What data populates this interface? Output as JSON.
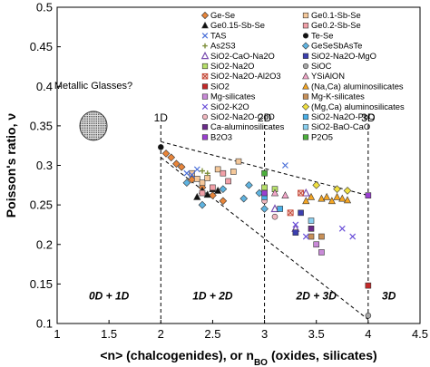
{
  "chart_data": {
    "type": "scatter",
    "xlabel": "<n> (chalcogenides), or n",
    "xlabel_sub": "BO",
    "xlabel_tail": "(oxides, silicates)",
    "ylabel": "Poisson's ratio, ν",
    "xlim": [
      1,
      4.5
    ],
    "ylim": [
      0.1,
      0.5
    ],
    "x_ticks": [
      1,
      1.5,
      2,
      2.5,
      3,
      3.5,
      4,
      4.5
    ],
    "y_ticks": [
      0.1,
      0.15,
      0.2,
      0.25,
      0.3,
      0.35,
      0.4,
      0.45,
      0.5
    ],
    "x_tick_labels": [
      "1",
      "1.5",
      "2",
      "2.5",
      "3",
      "3.5",
      "4",
      "4.5"
    ],
    "y_tick_labels": [
      "0.1",
      "0.15",
      "0.2",
      "0.25",
      "0.3",
      "0.35",
      "0.4",
      "0.45",
      "0.5"
    ],
    "dimension_lines": [
      {
        "x": 2,
        "label": "1D"
      },
      {
        "x": 3,
        "label": "2D"
      },
      {
        "x": 4,
        "label": "3D"
      }
    ],
    "region_labels": [
      {
        "text": "0D + 1D",
        "x": 1.5,
        "y": 0.135
      },
      {
        "text": "1D + 2D",
        "x": 2.5,
        "y": 0.135
      },
      {
        "text": "2D + 3D",
        "x": 3.5,
        "y": 0.135
      },
      {
        "text": "3D",
        "x": 4.2,
        "y": 0.135
      }
    ],
    "annotation": {
      "text": "Metallic Glasses?",
      "x": 1.35,
      "y": 0.35
    },
    "bounds": [
      {
        "from": [
          2,
          0.33
        ],
        "to": [
          4,
          0.262
        ]
      },
      {
        "from": [
          2,
          0.31
        ],
        "to": [
          4,
          0.105
        ]
      }
    ],
    "legend": [
      {
        "name": "Ge-Se",
        "marker": "diamond",
        "color": "#e8853a"
      },
      {
        "name": "Ge0.1-Sb-Se",
        "marker": "square",
        "color": "#f5c89a"
      },
      {
        "name": "Ge0.15-Sb-Se",
        "marker": "triangle",
        "color": "#111111"
      },
      {
        "name": "Ge0.2-Sb-Se",
        "marker": "square",
        "color": "#f2a0a8"
      },
      {
        "name": "TAS",
        "marker": "x",
        "color": "#4a6fd8"
      },
      {
        "name": "Te-Se",
        "marker": "circle",
        "color": "#111111"
      },
      {
        "name": "As2S3",
        "marker": "plus",
        "color": "#7e8f3a"
      },
      {
        "name": "GeSeSbAsTe",
        "marker": "diamond",
        "color": "#5fb3e0"
      },
      {
        "name": "SiO2-CaO-Na2O",
        "marker": "triangle-open",
        "color": "#7a4fb0"
      },
      {
        "name": "SiO2-Na2O-MgO",
        "marker": "square",
        "color": "#3c3fb0"
      },
      {
        "name": "SiO2-Na2O",
        "marker": "square",
        "color": "#b7e06a"
      },
      {
        "name": "SiOC",
        "marker": "circle",
        "color": "#a8a8a8"
      },
      {
        "name": "SiO2-Na2O-Al2O3",
        "marker": "xbox",
        "color": "#c04030"
      },
      {
        "name": "YSiAlON",
        "marker": "triangle",
        "color": "#f3a6c9"
      },
      {
        "name": "SiO2",
        "marker": "square",
        "color": "#c42828"
      },
      {
        "name": "(Na,Ca) aluminosilicates",
        "marker": "triangle",
        "color": "#f5a623"
      },
      {
        "name": "Mg-silicates",
        "marker": "square",
        "color": "#c98ad8"
      },
      {
        "name": "Mg-K-silicates",
        "marker": "square",
        "color": "#c89058"
      },
      {
        "name": "SiO2-K2O",
        "marker": "x",
        "color": "#6a4fd8"
      },
      {
        "name": "(Mg,Ca) aluminosilicates",
        "marker": "diamond",
        "color": "#f0e040"
      },
      {
        "name": "SiO2-Na2O-CdO",
        "marker": "circle",
        "color": "#f2b8c0"
      },
      {
        "name": "SiO2-Na2O-PbO",
        "marker": "square",
        "color": "#4ab0e8"
      },
      {
        "name": "Ca-aluminosilicates",
        "marker": "square",
        "color": "#6a2a8a"
      },
      {
        "name": "SiO2-BaO-CaO",
        "marker": "square",
        "color": "#8ad0f0"
      },
      {
        "name": "B2O3",
        "marker": "square",
        "color": "#9a3fd0"
      },
      {
        "name": "P2O5",
        "marker": "square",
        "color": "#4caf3c"
      }
    ],
    "points": [
      {
        "series": "Te-Se",
        "x": 2.0,
        "y": 0.323
      },
      {
        "series": "Ge-Se",
        "x": 2.05,
        "y": 0.315
      },
      {
        "series": "Ge-Se",
        "x": 2.1,
        "y": 0.31
      },
      {
        "series": "Ge-Se",
        "x": 2.15,
        "y": 0.302
      },
      {
        "series": "Ge-Se",
        "x": 2.2,
        "y": 0.298
      },
      {
        "series": "Ge-Se",
        "x": 2.3,
        "y": 0.282
      },
      {
        "series": "Ge-Se",
        "x": 2.4,
        "y": 0.272
      },
      {
        "series": "Ge-Se",
        "x": 2.5,
        "y": 0.262
      },
      {
        "series": "Ge-Se",
        "x": 2.6,
        "y": 0.255
      },
      {
        "series": "Ge0.1-Sb-Se",
        "x": 2.3,
        "y": 0.29
      },
      {
        "series": "Ge0.1-Sb-Se",
        "x": 2.35,
        "y": 0.283
      },
      {
        "series": "Ge0.1-Sb-Se",
        "x": 2.4,
        "y": 0.278
      },
      {
        "series": "Ge0.1-Sb-Se",
        "x": 2.45,
        "y": 0.284
      },
      {
        "series": "Ge0.1-Sb-Se",
        "x": 2.55,
        "y": 0.295
      },
      {
        "series": "Ge0.1-Sb-Se",
        "x": 2.75,
        "y": 0.305
      },
      {
        "series": "Ge0.1-Sb-Se",
        "x": 2.7,
        "y": 0.292
      },
      {
        "series": "Ge0.15-Sb-Se",
        "x": 2.35,
        "y": 0.26
      },
      {
        "series": "Ge0.15-Sb-Se",
        "x": 2.4,
        "y": 0.268
      },
      {
        "series": "Ge0.15-Sb-Se",
        "x": 2.45,
        "y": 0.263
      },
      {
        "series": "Ge0.15-Sb-Se",
        "x": 2.5,
        "y": 0.27
      },
      {
        "series": "Ge0.15-Sb-Se",
        "x": 2.55,
        "y": 0.268
      },
      {
        "series": "Ge0.2-Sb-Se",
        "x": 2.4,
        "y": 0.265
      },
      {
        "series": "Ge0.2-Sb-Se",
        "x": 2.5,
        "y": 0.272
      },
      {
        "series": "Ge0.2-Sb-Se",
        "x": 2.6,
        "y": 0.29
      },
      {
        "series": "Ge0.2-Sb-Se",
        "x": 2.65,
        "y": 0.28
      },
      {
        "series": "TAS",
        "x": 2.25,
        "y": 0.29
      },
      {
        "series": "TAS",
        "x": 2.3,
        "y": 0.288
      },
      {
        "series": "TAS",
        "x": 2.35,
        "y": 0.295
      },
      {
        "series": "TAS",
        "x": 3.2,
        "y": 0.3
      },
      {
        "series": "As2S3",
        "x": 2.4,
        "y": 0.293
      },
      {
        "series": "As2S3",
        "x": 2.45,
        "y": 0.29
      },
      {
        "series": "GeSeSbAsTe",
        "x": 2.25,
        "y": 0.278
      },
      {
        "series": "GeSeSbAsTe",
        "x": 2.4,
        "y": 0.25
      },
      {
        "series": "GeSeSbAsTe",
        "x": 2.6,
        "y": 0.27
      },
      {
        "series": "GeSeSbAsTe",
        "x": 2.8,
        "y": 0.258
      },
      {
        "series": "GeSeSbAsTe",
        "x": 2.85,
        "y": 0.275
      },
      {
        "series": "GeSeSbAsTe",
        "x": 2.95,
        "y": 0.265
      },
      {
        "series": "GeSeSbAsTe",
        "x": 3.0,
        "y": 0.245
      },
      {
        "series": "SiO2-CaO-Na2O",
        "x": 3.1,
        "y": 0.245
      },
      {
        "series": "SiO2-CaO-Na2O",
        "x": 3.3,
        "y": 0.22
      },
      {
        "series": "SiO2-CaO-Na2O",
        "x": 3.4,
        "y": 0.265
      },
      {
        "series": "SiO2-Na2O",
        "x": 3.0,
        "y": 0.272
      },
      {
        "series": "SiO2-Na2O",
        "x": 3.1,
        "y": 0.27
      },
      {
        "series": "SiO2-Na2O-MgO",
        "x": 3.3,
        "y": 0.215
      },
      {
        "series": "SiO2-Na2O-MgO",
        "x": 3.35,
        "y": 0.24
      },
      {
        "series": "SiOC",
        "x": 4.0,
        "y": 0.11
      },
      {
        "series": "SiO2-Na2O-Al2O3",
        "x": 3.25,
        "y": 0.24
      },
      {
        "series": "SiO2-Na2O-Al2O3",
        "x": 3.35,
        "y": 0.265
      },
      {
        "series": "YSiAlON",
        "x": 3.1,
        "y": 0.265
      },
      {
        "series": "YSiAlON",
        "x": 3.2,
        "y": 0.262
      },
      {
        "series": "SiO2",
        "x": 4.0,
        "y": 0.148
      },
      {
        "series": "(Na,Ca) aluminosilicates",
        "x": 3.4,
        "y": 0.255
      },
      {
        "series": "(Na,Ca) aluminosilicates",
        "x": 3.45,
        "y": 0.26
      },
      {
        "series": "(Na,Ca) aluminosilicates",
        "x": 3.55,
        "y": 0.258
      },
      {
        "series": "(Na,Ca) aluminosilicates",
        "x": 3.6,
        "y": 0.26
      },
      {
        "series": "(Na,Ca) aluminosilicates",
        "x": 3.65,
        "y": 0.255
      },
      {
        "series": "(Na,Ca) aluminosilicates",
        "x": 3.7,
        "y": 0.26
      },
      {
        "series": "(Na,Ca) aluminosilicates",
        "x": 3.75,
        "y": 0.258
      },
      {
        "series": "(Na,Ca) aluminosilicates",
        "x": 3.8,
        "y": 0.256
      },
      {
        "series": "Mg-silicates",
        "x": 3.5,
        "y": 0.2
      },
      {
        "series": "Mg-silicates",
        "x": 3.55,
        "y": 0.19
      },
      {
        "series": "Mg-K-silicates",
        "x": 3.45,
        "y": 0.21
      },
      {
        "series": "Mg-K-silicates",
        "x": 3.55,
        "y": 0.21
      },
      {
        "series": "SiO2-K2O",
        "x": 3.3,
        "y": 0.225
      },
      {
        "series": "SiO2-K2O",
        "x": 3.4,
        "y": 0.21
      },
      {
        "series": "SiO2-K2O",
        "x": 3.75,
        "y": 0.22
      },
      {
        "series": "SiO2-K2O",
        "x": 3.85,
        "y": 0.21
      },
      {
        "series": "(Mg,Ca) aluminosilicates",
        "x": 3.5,
        "y": 0.275
      },
      {
        "series": "(Mg,Ca) aluminosilicates",
        "x": 3.7,
        "y": 0.27
      },
      {
        "series": "(Mg,Ca) aluminosilicates",
        "x": 3.8,
        "y": 0.268
      },
      {
        "series": "SiO2-Na2O-CdO",
        "x": 3.0,
        "y": 0.255
      },
      {
        "series": "SiO2-Na2O-CdO",
        "x": 3.1,
        "y": 0.235
      },
      {
        "series": "SiO2-Na2O-PbO",
        "x": 3.0,
        "y": 0.26
      },
      {
        "series": "SiO2-Na2O-PbO",
        "x": 3.15,
        "y": 0.245
      },
      {
        "series": "Ca-aluminosilicates",
        "x": 3.45,
        "y": 0.22
      },
      {
        "series": "SiO2-BaO-CaO",
        "x": 3.45,
        "y": 0.23
      },
      {
        "series": "B2O3",
        "x": 3.0,
        "y": 0.265
      },
      {
        "series": "B2O3",
        "x": 4.0,
        "y": 0.262
      },
      {
        "series": "P2O5",
        "x": 3.0,
        "y": 0.29
      }
    ]
  }
}
